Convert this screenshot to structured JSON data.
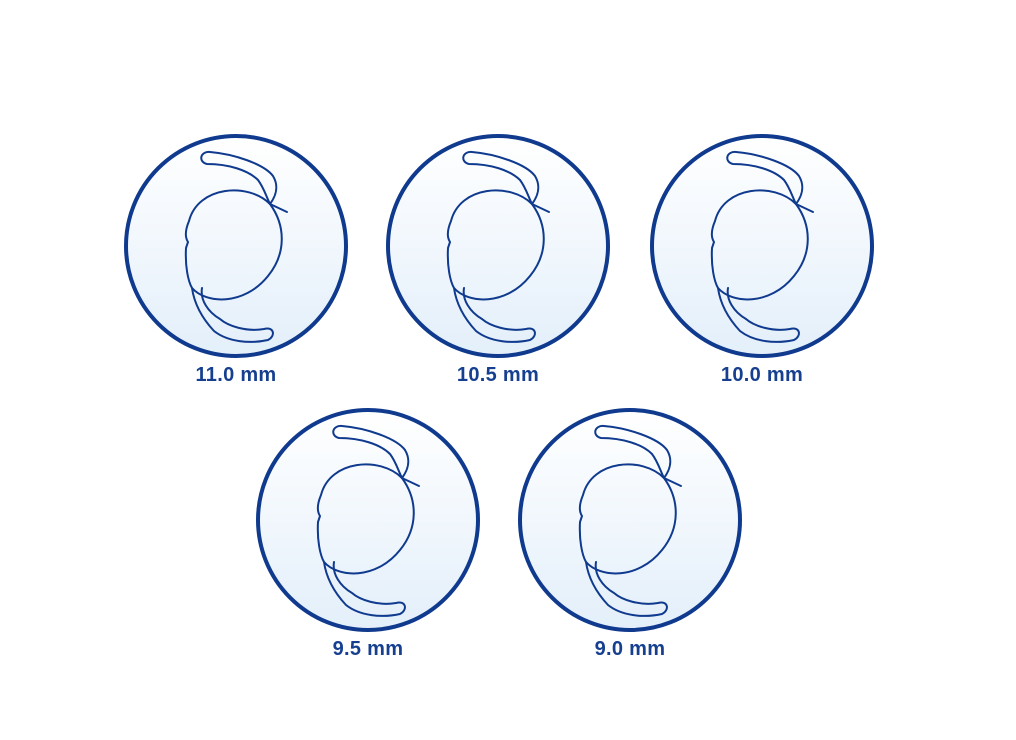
{
  "colors": {
    "stroke": "#0f3a8e",
    "label": "#16408f",
    "fill_top": "#ffffff",
    "fill_bottom": "#e3effa"
  },
  "lenses": [
    {
      "label": "11.0 mm",
      "size_mm": 11.0
    },
    {
      "label": "10.5 mm",
      "size_mm": 10.5
    },
    {
      "label": "10.0 mm",
      "size_mm": 10.0
    },
    {
      "label": "9.5 mm",
      "size_mm": 9.5
    },
    {
      "label": "9.0 mm",
      "size_mm": 9.0
    }
  ]
}
